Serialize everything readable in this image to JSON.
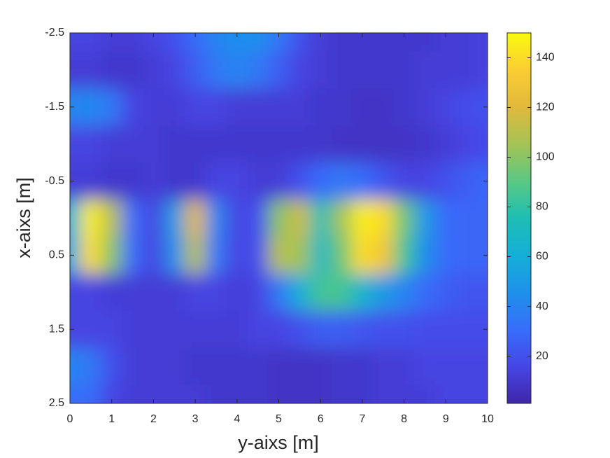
{
  "chart_data": {
    "type": "heatmap",
    "xlabel": "y-aixs [m]",
    "ylabel": "x-aixs [m]",
    "x": [
      0,
      0.5,
      1,
      1.5,
      2,
      2.5,
      3,
      3.5,
      4,
      4.5,
      5,
      5.5,
      6,
      6.5,
      7,
      7.5,
      8,
      8.5,
      9,
      9.5,
      10
    ],
    "y": [
      -2.5,
      -2,
      -1.5,
      -1,
      -0.5,
      0,
      0.5,
      1,
      1.5,
      2,
      2.5
    ],
    "values": [
      [
        15,
        15,
        12,
        12,
        15,
        20,
        30,
        40,
        45,
        45,
        35,
        20,
        12,
        10,
        10,
        10,
        10,
        10,
        12,
        12,
        15
      ],
      [
        12,
        12,
        10,
        10,
        12,
        15,
        25,
        35,
        40,
        35,
        25,
        15,
        12,
        10,
        10,
        10,
        10,
        12,
        12,
        12,
        15
      ],
      [
        40,
        42,
        35,
        15,
        12,
        12,
        15,
        15,
        12,
        12,
        12,
        12,
        10,
        10,
        8,
        8,
        10,
        12,
        15,
        18,
        20
      ],
      [
        15,
        15,
        12,
        12,
        12,
        10,
        10,
        10,
        10,
        10,
        10,
        10,
        10,
        8,
        8,
        8,
        8,
        10,
        12,
        15,
        18
      ],
      [
        12,
        12,
        10,
        10,
        12,
        10,
        10,
        15,
        15,
        12,
        12,
        20,
        30,
        35,
        30,
        22,
        15,
        15,
        20,
        25,
        28
      ],
      [
        60,
        145,
        110,
        30,
        15,
        50,
        120,
        40,
        15,
        20,
        100,
        115,
        75,
        105,
        145,
        140,
        95,
        50,
        30,
        28,
        28
      ],
      [
        55,
        140,
        100,
        30,
        15,
        45,
        110,
        35,
        15,
        20,
        110,
        105,
        70,
        95,
        140,
        130,
        85,
        45,
        30,
        28,
        28
      ],
      [
        15,
        15,
        12,
        12,
        12,
        12,
        15,
        15,
        12,
        15,
        35,
        60,
        85,
        85,
        65,
        50,
        40,
        30,
        25,
        22,
        22
      ],
      [
        15,
        15,
        15,
        12,
        12,
        12,
        12,
        12,
        12,
        15,
        15,
        20,
        25,
        25,
        22,
        20,
        20,
        18,
        18,
        18,
        18
      ],
      [
        40,
        35,
        20,
        12,
        12,
        12,
        10,
        10,
        10,
        10,
        8,
        8,
        8,
        10,
        10,
        12,
        12,
        15,
        15,
        15,
        15
      ],
      [
        30,
        30,
        15,
        12,
        12,
        12,
        12,
        10,
        10,
        10,
        8,
        8,
        8,
        10,
        10,
        12,
        12,
        12,
        15,
        15,
        15
      ]
    ],
    "xlim": [
      0,
      10
    ],
    "xticks": [
      0,
      1,
      2,
      3,
      4,
      5,
      6,
      7,
      8,
      9,
      10
    ],
    "ylim": [
      -2.5,
      2.5
    ],
    "yticks": [
      -2.5,
      -1.5,
      -0.5,
      0.5,
      1.5,
      2.5
    ],
    "y_reversed": true,
    "colormap": "parula",
    "clim": [
      1,
      150
    ],
    "cticks": [
      20,
      40,
      60,
      80,
      100,
      120,
      140
    ]
  }
}
